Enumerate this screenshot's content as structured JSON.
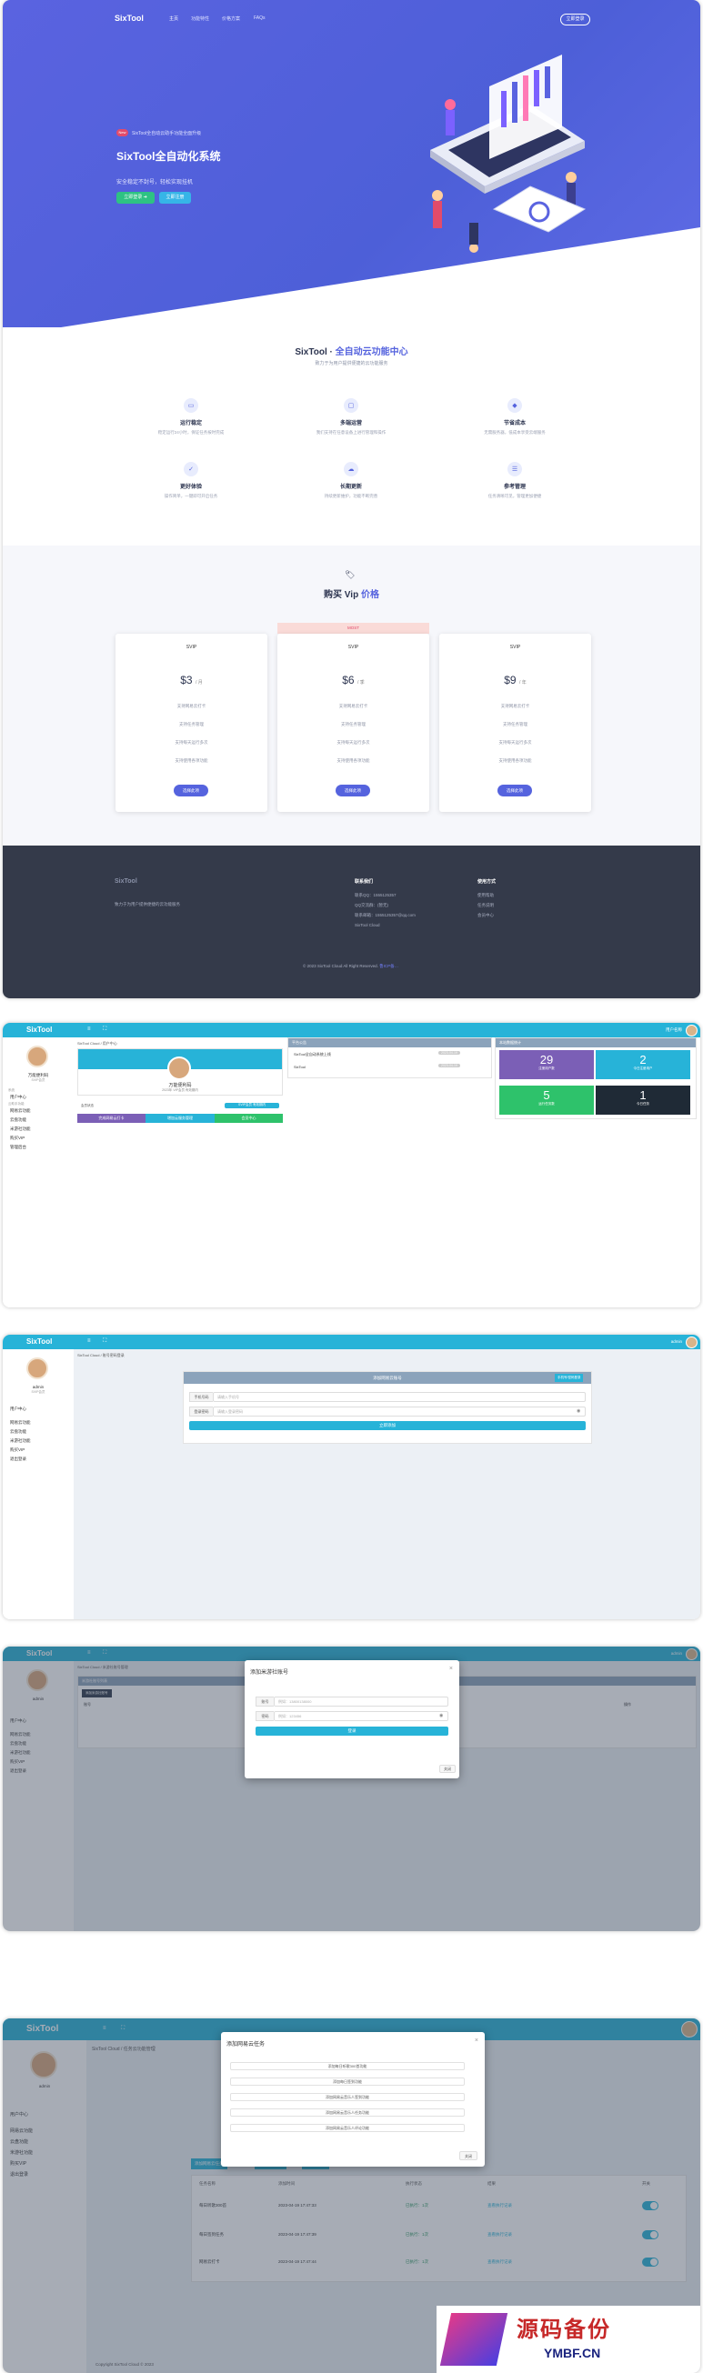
{
  "landing": {
    "nav": {
      "brand": "SixTool",
      "links": [
        "主页",
        "功能特性",
        "价格方案",
        "FAQs"
      ],
      "login": "立即登录"
    },
    "hero": {
      "badge": "New",
      "note": "SixTool全自动云助手功能全面升级",
      "title": "SixTool全自动化系统",
      "subtitle": "安全稳定不封号，轻松实现挂机",
      "btn_primary": "立即登录 ➔",
      "btn_secondary": "立即注册"
    },
    "features": {
      "title": "SixTool · 全自动云功能中心",
      "title_plain": "SixTool · ",
      "title_accent": "全自动云功能中心",
      "subtitle": "致力于为用户提供便捷的云功能服务",
      "items": [
        {
          "icon": "monitor-icon",
          "title": "运行稳定",
          "desc": "稳定运行24小时，保证任务按时完成"
        },
        {
          "icon": "device-icon",
          "title": "多端运营",
          "desc": "我们支持在任意设备上进行管理和操作"
        },
        {
          "icon": "drop-icon",
          "title": "节省成本",
          "desc": "无需服务器，低成本享受云端服务"
        },
        {
          "icon": "check-icon",
          "title": "更好体验",
          "desc": "操作简单，一键即可开启任务"
        },
        {
          "icon": "cloud-icon",
          "title": "长期更新",
          "desc": "持续更新维护，功能不断完善"
        },
        {
          "icon": "doc-icon",
          "title": "参考管理",
          "desc": "任务清晰可见，管理更加便捷"
        }
      ]
    },
    "pricing": {
      "title_plain": "购买 Vip ",
      "title_accent": "价格",
      "plans": [
        {
          "name": "SVIP",
          "price": "$3",
          "unit": "/ 月",
          "lines": [
            "支持网易云打卡",
            "支持任务管理",
            "支持每天运行多次",
            "支持使用各项功能"
          ],
          "cta": "选择此项"
        },
        {
          "name": "SVIP",
          "price": "$6",
          "unit": "/ 季",
          "ribbon": "MOST",
          "lines": [
            "支持网易云打卡",
            "支持任务管理",
            "支持每天运行多次",
            "支持使用各项功能"
          ],
          "cta": "选择此项"
        },
        {
          "name": "SVIP",
          "price": "$9",
          "unit": "/ 年",
          "lines": [
            "支持网易云打卡",
            "支持任务管理",
            "支持每天运行多次",
            "支持使用各项功能"
          ],
          "cta": "选择此项"
        }
      ]
    },
    "footer": {
      "brand": "SixTool",
      "desc": "致力于为用户提供便捷的云功能服务",
      "col1_title": "联系我们",
      "col1_items": [
        "联系QQ：1555125357",
        "QQ交流群：(暂无)",
        "联系邮箱：1555125357@qq.com",
        "SixTool Cloud"
      ],
      "col2_title": "使用方式",
      "col2_items": [
        "使用帮助",
        "任务说明",
        "会员中心"
      ],
      "copyright": "© 2023 SixTool Cloud All Right Reserved.",
      "copyright_link": "鲁ICP备…"
    }
  },
  "admin1": {
    "brand": "SixTool",
    "user_label": "用户名称",
    "crumb": "SixTool Cloud / 用户中心",
    "profile": {
      "name": "万能便利码",
      "sub": "2023年  VIP会员  有效期内",
      "btn1": "完成网易云打卡",
      "btn2": "增加云服务管理",
      "btn3": "会员中心",
      "tag": "SVIP会员  有效期内",
      "status": "会员状态"
    },
    "notice": {
      "title": "平台公告",
      "items": [
        {
          "text": "SixTool全自动系统上线",
          "date": "2023-04-19"
        },
        {
          "text": "SixTool",
          "date": "2023-04-19"
        }
      ]
    },
    "stats_title": "本站数据统计",
    "stats": [
      {
        "value": "29",
        "label": "注册用户数",
        "color": "#7b5fb6"
      },
      {
        "value": "2",
        "label": "今日注册用户",
        "color": "#27b3d8"
      },
      {
        "value": "5",
        "label": "运行任务数",
        "color": "#2ec26b"
      },
      {
        "value": "1",
        "label": "今日任务",
        "color": "#1f2a36"
      }
    ],
    "sidebar": {
      "user": "万能便利码",
      "role": "SVIP会员",
      "head1": "系统",
      "head2": "云助手功能",
      "items": [
        "用户中心",
        "网易云功能",
        "云盘功能",
        "米游社功能",
        "购买VIP",
        "管理后台"
      ]
    }
  },
  "admin2": {
    "crumb": "SixTool Cloud / 账号密码登录",
    "panel_title": "添加网易云账号",
    "panel_tag": "手机号/密码登录",
    "field1_label": "手机号码",
    "field1_placeholder": "请输入手机号",
    "field2_label": "登录密码",
    "field2_placeholder": "请输入登录密码",
    "submit": "立即添加",
    "sidebar": {
      "user": "admin",
      "role": "SVIP会员",
      "items": [
        "用户中心",
        "网易云功能",
        "云盘功能",
        "米游社功能",
        "购买VIP",
        "退出登录"
      ]
    }
  },
  "admin3": {
    "crumb": "SixTool Cloud / 米游社账号管理",
    "panel_title": "米游社账号列表",
    "add_btn": "添加米游社账号",
    "columns": [
      "账号",
      "状态",
      "操作"
    ],
    "modal": {
      "title": "添加米游社账号",
      "label1": "账号",
      "placeholder1": "例如：13800138000",
      "label2": "密码",
      "placeholder2": "例如：123456",
      "submit": "登录",
      "close": "关闭"
    }
  },
  "admin4": {
    "crumb": "SixTool Cloud / 任务云功能管理",
    "modal": {
      "title": "添加网易云任务",
      "options": [
        "添加每日听歌300首功能",
        "添加每日签到功能",
        "添加网易云音乐人签到功能",
        "添加网易云音乐人任务功能",
        "添加网易云音乐人评论功能"
      ],
      "close": "关闭"
    },
    "toolbar": [
      "添加网易云任务",
      "刷新任务列表",
      "更多功能 ▾"
    ],
    "columns": [
      "任务名称",
      "添加时间",
      "执行状态",
      "结果",
      "开关"
    ],
    "rows": [
      {
        "name": "每日听歌300首",
        "time": "2023-04-19 17:47:33",
        "status": "已执行：1次",
        "result": "查看执行记录"
      },
      {
        "name": "每日签到任务",
        "time": "2023-04-19 17:47:39",
        "status": "已执行：1次",
        "result": "查看执行记录"
      },
      {
        "name": "网易云打卡",
        "time": "2023-04-19 17:47:44",
        "status": "已执行：1次",
        "result": "查看执行记录"
      }
    ],
    "footer": "Copyright SixTool Cloud © 2023",
    "watermark_cn": "源码备份",
    "watermark_en": "YMBF.CN"
  },
  "colors": {
    "accent": "#5563de",
    "cyan": "#27b3d8",
    "green": "#2ec283",
    "footer": "#343a4a"
  }
}
